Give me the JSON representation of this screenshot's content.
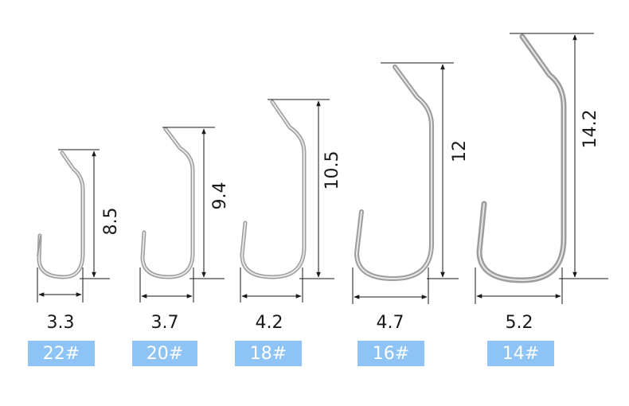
{
  "hooks": [
    {
      "size": "22#",
      "width": "3.3",
      "height": "8.5"
    },
    {
      "size": "20#",
      "width": "3.7",
      "height": "9.4"
    },
    {
      "size": "18#",
      "width": "4.2",
      "height": "10.5"
    },
    {
      "size": "16#",
      "width": "4.7",
      "height": "12"
    },
    {
      "size": "14#",
      "width": "5.2",
      "height": "14.2"
    }
  ],
  "colors": {
    "badge": "#8ec3f5",
    "badge_text": "#ffffff",
    "line": "#1a1a1a",
    "hook_metal": "#a8a8a8"
  }
}
